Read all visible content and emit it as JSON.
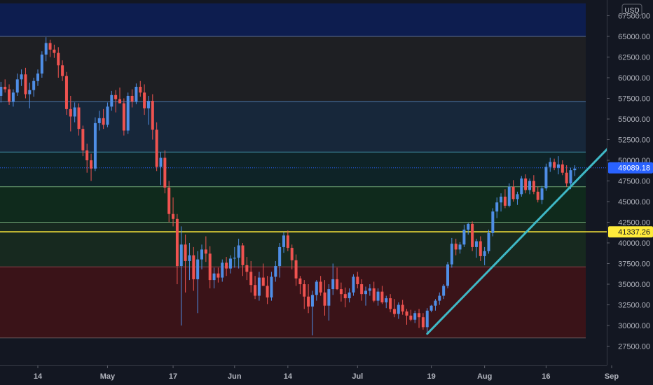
{
  "chart_data": {
    "type": "candlestick",
    "currency": "USD",
    "ylim": [
      26000,
      69000
    ],
    "y_ticks": [
      27500,
      30000,
      32500,
      35000,
      37500,
      40000,
      42500,
      45000,
      47500,
      50000,
      52500,
      55000,
      57500,
      60000,
      62500,
      65000,
      67500
    ],
    "y_tick_labels": [
      "27500.00",
      "30000.00",
      "32500.00",
      "35000.00",
      "37500.00",
      "40000.00",
      "42500.00",
      "45000.00",
      "47500.00",
      "50000.00",
      "52500.00",
      "55000.00",
      "57500.00",
      "60000.00",
      "62500.00",
      "65000.00",
      "67500.00"
    ],
    "x_ticks": [
      {
        "label": "14",
        "day": 0
      },
      {
        "label": "May",
        "day": 17
      },
      {
        "label": "17",
        "day": 33
      },
      {
        "label": "Jun",
        "day": 48
      },
      {
        "label": "14",
        "day": 61
      },
      {
        "label": "Jul",
        "day": 78
      },
      {
        "label": "19",
        "day": 96
      },
      {
        "label": "Aug",
        "day": 109
      },
      {
        "label": "16",
        "day": 124
      },
      {
        "label": "Sep",
        "day": 140
      },
      {
        "label": "14",
        "day": 153
      }
    ],
    "zones": [
      {
        "from": 65000,
        "to": 69000,
        "color": "#0d1d4f"
      },
      {
        "from": 57100,
        "to": 65000,
        "color": "#1e1f23"
      },
      {
        "from": 51000,
        "to": 57100,
        "color": "#17273a"
      },
      {
        "from": 46800,
        "to": 51000,
        "color": "#0e2327"
      },
      {
        "from": 42500,
        "to": 46800,
        "color": "#0f2a1c"
      },
      {
        "from": 37100,
        "to": 42500,
        "color": "#17291f"
      },
      {
        "from": 28500,
        "to": 37100,
        "color": "#3a1318"
      }
    ],
    "horizontal_lines": [
      {
        "price": 41337.26,
        "label": "41337.26",
        "color": "#ffeb3b"
      },
      {
        "price": 49089.18,
        "label": "49089.18",
        "color": "#2962ff"
      }
    ],
    "trendline": {
      "from": {
        "day": 95,
        "price": 29000
      },
      "to": {
        "day": 149,
        "price": 56500
      },
      "color": "#3fb8c6"
    },
    "candles": [
      [
        -9,
        57800,
        59500,
        57000,
        58900
      ],
      [
        -8,
        58900,
        59800,
        58200,
        58600
      ],
      [
        -7,
        58600,
        59200,
        56700,
        57100
      ],
      [
        -6,
        57100,
        58600,
        56500,
        58200
      ],
      [
        -5,
        58200,
        60500,
        57800,
        59800
      ],
      [
        -4,
        59800,
        61000,
        59000,
        60400
      ],
      [
        -3,
        60400,
        61200,
        57500,
        58000
      ],
      [
        -2,
        58000,
        59400,
        56300,
        58500
      ],
      [
        -1,
        58500,
        60000,
        57700,
        59600
      ],
      [
        0,
        59600,
        61000,
        59000,
        60500
      ],
      [
        1,
        60500,
        63200,
        60000,
        62800
      ],
      [
        2,
        62800,
        64900,
        62000,
        64200
      ],
      [
        3,
        64200,
        64600,
        62500,
        63400
      ],
      [
        4,
        63400,
        64000,
        62400,
        63000
      ],
      [
        5,
        63000,
        63700,
        60000,
        61500
      ],
      [
        6,
        61500,
        62100,
        59600,
        60200
      ],
      [
        7,
        60200,
        60700,
        55500,
        56200
      ],
      [
        8,
        56200,
        57800,
        53500,
        55300
      ],
      [
        9,
        55300,
        57000,
        54600,
        56400
      ],
      [
        10,
        56400,
        56900,
        53000,
        53800
      ],
      [
        11,
        53800,
        54200,
        50500,
        51200
      ],
      [
        12,
        51200,
        52000,
        48500,
        50000
      ],
      [
        13,
        50000,
        50800,
        47500,
        49000
      ],
      [
        14,
        49000,
        55200,
        48700,
        54500
      ],
      [
        15,
        54500,
        56000,
        53600,
        55100
      ],
      [
        16,
        55100,
        56200,
        53800,
        54300
      ],
      [
        17,
        54300,
        57000,
        54000,
        56500
      ],
      [
        18,
        56500,
        58400,
        56000,
        57900
      ],
      [
        19,
        57900,
        58500,
        55800,
        57400
      ],
      [
        20,
        57400,
        58800,
        56900,
        56900
      ],
      [
        21,
        56900,
        57500,
        53000,
        53600
      ],
      [
        22,
        53600,
        58200,
        53200,
        57800
      ],
      [
        23,
        57800,
        58600,
        56400,
        57100
      ],
      [
        24,
        57100,
        59300,
        56800,
        58900
      ],
      [
        25,
        58900,
        59600,
        57700,
        58200
      ],
      [
        26,
        58200,
        59200,
        55500,
        56300
      ],
      [
        27,
        56300,
        57800,
        54300,
        57200
      ],
      [
        28,
        57200,
        58000,
        52500,
        53700
      ],
      [
        29,
        53700,
        54600,
        48700,
        49200
      ],
      [
        30,
        49200,
        51000,
        47000,
        50300
      ],
      [
        31,
        50300,
        51200,
        46000,
        46700
      ],
      [
        32,
        46700,
        47500,
        42500,
        43500
      ],
      [
        33,
        43500,
        45500,
        42000,
        42900
      ],
      [
        34,
        42900,
        43500,
        35000,
        37200
      ],
      [
        35,
        37200,
        42000,
        30000,
        39800
      ],
      [
        36,
        39800,
        41000,
        34000,
        37800
      ],
      [
        37,
        37800,
        40000,
        35500,
        38500
      ],
      [
        38,
        38500,
        39500,
        34200,
        35600
      ],
      [
        39,
        35600,
        39000,
        31500,
        38000
      ],
      [
        40,
        38000,
        39800,
        36800,
        39200
      ],
      [
        41,
        39200,
        40800,
        37700,
        38700
      ],
      [
        42,
        38700,
        39600,
        34500,
        35500
      ],
      [
        43,
        35500,
        37000,
        34500,
        36300
      ],
      [
        44,
        36300,
        37000,
        35200,
        35800
      ],
      [
        45,
        35800,
        38000,
        35300,
        37600
      ],
      [
        46,
        37600,
        38300,
        36000,
        36900
      ],
      [
        47,
        36900,
        38500,
        36300,
        38100
      ],
      [
        48,
        38100,
        39500,
        37000,
        38200
      ],
      [
        49,
        38200,
        40500,
        36900,
        39700
      ],
      [
        50,
        39700,
        40000,
        36000,
        37300
      ],
      [
        51,
        37300,
        38300,
        35500,
        36500
      ],
      [
        52,
        36500,
        37800,
        34000,
        34900
      ],
      [
        53,
        34900,
        36000,
        33200,
        33600
      ],
      [
        54,
        33600,
        36500,
        33000,
        35800
      ],
      [
        55,
        35800,
        37500,
        34800,
        34800
      ],
      [
        56,
        34800,
        36000,
        32600,
        33400
      ],
      [
        57,
        33400,
        36500,
        33000,
        35900
      ],
      [
        58,
        35900,
        37800,
        35300,
        37200
      ],
      [
        59,
        37200,
        40000,
        35800,
        39500
      ],
      [
        60,
        39500,
        41300,
        38800,
        40900
      ],
      [
        61,
        40900,
        41500,
        39000,
        39400
      ],
      [
        62,
        39400,
        39800,
        36800,
        37900
      ],
      [
        63,
        37900,
        38600,
        34800,
        35700
      ],
      [
        64,
        35700,
        36000,
        33800,
        35000
      ],
      [
        65,
        35000,
        35500,
        32000,
        33500
      ],
      [
        66,
        33500,
        35000,
        31500,
        32300
      ],
      [
        67,
        32300,
        34200,
        28800,
        33700
      ],
      [
        68,
        33700,
        35500,
        33000,
        35300
      ],
      [
        69,
        35300,
        36000,
        33600,
        34000
      ],
      [
        70,
        34000,
        35500,
        31200,
        32400
      ],
      [
        71,
        32400,
        35000,
        30600,
        34400
      ],
      [
        72,
        34400,
        37500,
        33700,
        35600
      ],
      [
        73,
        35600,
        37000,
        34300,
        34400
      ],
      [
        74,
        34400,
        35200,
        32900,
        33800
      ],
      [
        75,
        33800,
        34600,
        32200,
        33300
      ],
      [
        76,
        33300,
        34500,
        32800,
        34000
      ],
      [
        77,
        34000,
        36200,
        33600,
        35900
      ],
      [
        78,
        35900,
        36500,
        34500,
        35000
      ],
      [
        79,
        35000,
        35600,
        33000,
        33800
      ],
      [
        80,
        33800,
        34700,
        32400,
        34200
      ],
      [
        81,
        34200,
        35000,
        33600,
        34500
      ],
      [
        82,
        34500,
        35300,
        32800,
        33000
      ],
      [
        83,
        33000,
        34500,
        32400,
        34100
      ],
      [
        84,
        34100,
        34800,
        32600,
        32800
      ],
      [
        85,
        32800,
        33600,
        32100,
        33300
      ],
      [
        86,
        33300,
        33800,
        31600,
        32000
      ],
      [
        87,
        32000,
        33200,
        31000,
        31400
      ],
      [
        88,
        31400,
        32800,
        30800,
        32500
      ],
      [
        89,
        32500,
        33100,
        31300,
        31700
      ],
      [
        90,
        31700,
        32000,
        30100,
        31200
      ],
      [
        91,
        31200,
        31900,
        30500,
        30700
      ],
      [
        92,
        30700,
        31800,
        30300,
        31500
      ],
      [
        93,
        31500,
        32000,
        29700,
        31000
      ],
      [
        94,
        31000,
        31500,
        29500,
        29800
      ],
      [
        95,
        29800,
        32100,
        29200,
        31800
      ],
      [
        96,
        31800,
        32500,
        31600,
        32400
      ],
      [
        97,
        32400,
        33200,
        31800,
        33000
      ],
      [
        98,
        33000,
        34000,
        32500,
        33600
      ],
      [
        99,
        33600,
        35000,
        33200,
        34800
      ],
      [
        100,
        34800,
        37700,
        34500,
        37400
      ],
      [
        101,
        37400,
        40600,
        37000,
        39900
      ],
      [
        102,
        39900,
        40500,
        38500,
        39200
      ],
      [
        103,
        39200,
        40100,
        38700,
        39800
      ],
      [
        104,
        39800,
        42200,
        39500,
        41600
      ],
      [
        105,
        41600,
        42400,
        41000,
        42300
      ],
      [
        106,
        42300,
        42600,
        39000,
        39500
      ],
      [
        107,
        39500,
        40500,
        38200,
        40200
      ],
      [
        108,
        40200,
        40800,
        37800,
        38400
      ],
      [
        109,
        38400,
        39500,
        37300,
        39000
      ],
      [
        110,
        39000,
        41600,
        38700,
        41200
      ],
      [
        111,
        41200,
        44200,
        40800,
        43800
      ],
      [
        112,
        43800,
        45500,
        43000,
        44900
      ],
      [
        113,
        44900,
        46000,
        43800,
        45600
      ],
      [
        114,
        45600,
        46500,
        44200,
        44500
      ],
      [
        115,
        44500,
        47200,
        44300,
        46800
      ],
      [
        116,
        46800,
        47600,
        45000,
        45300
      ],
      [
        117,
        45300,
        46200,
        44600,
        45900
      ],
      [
        118,
        45900,
        48100,
        45600,
        47800
      ],
      [
        119,
        47800,
        48300,
        46000,
        46400
      ],
      [
        120,
        46400,
        47800,
        45900,
        47500
      ],
      [
        121,
        47500,
        48200,
        45900,
        46200
      ],
      [
        122,
        46200,
        46800,
        44900,
        45200
      ],
      [
        123,
        45200,
        46900,
        44700,
        46600
      ],
      [
        124,
        46600,
        49600,
        46300,
        49200
      ],
      [
        125,
        49200,
        50300,
        48600,
        49800
      ],
      [
        126,
        49800,
        50200,
        48800,
        49100
      ],
      [
        127,
        49100,
        50500,
        48300,
        49500
      ],
      [
        128,
        49500,
        50000,
        48200,
        48500
      ],
      [
        129,
        48500,
        49400,
        46800,
        47200
      ],
      [
        130,
        47200,
        49100,
        46500,
        48800
      ],
      [
        131,
        48800,
        49400,
        48100,
        49000
      ]
    ]
  }
}
